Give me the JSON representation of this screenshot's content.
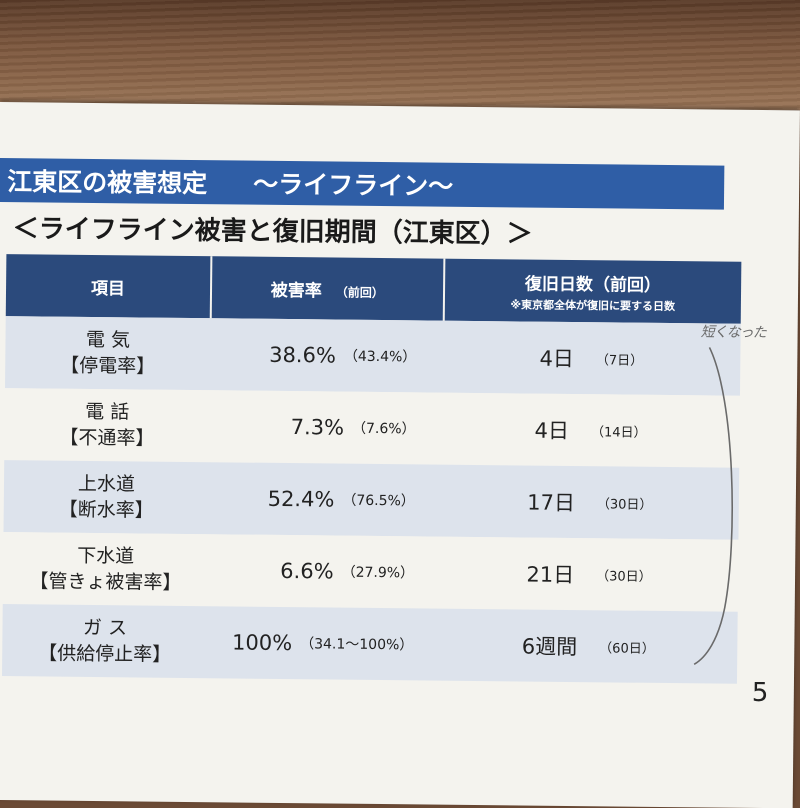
{
  "banner": {
    "title": "江東区の被害想定",
    "subtitle": "～ライフライン～"
  },
  "section_title": "＜ライフライン被害と復旧期間（江東区）＞",
  "table": {
    "headers": {
      "item": "項目",
      "rate": "被害率",
      "rate_prev": "（前回）",
      "days": "復旧日数（前回）",
      "days_note": "※東京都全体が復旧に要する日数"
    },
    "rows": [
      {
        "item": "電 気",
        "sub": "【停電率】",
        "rate": "38.6%",
        "rate_prev": "（43.4%）",
        "days": "4日",
        "days_prev": "（7日）"
      },
      {
        "item": "電 話",
        "sub": "【不通率】",
        "rate": "7.3%",
        "rate_prev": "（7.6%）",
        "days": "4日",
        "days_prev": "（14日）"
      },
      {
        "item": "上水道",
        "sub": "【断水率】",
        "rate": "52.4%",
        "rate_prev": "（76.5%）",
        "days": "17日",
        "days_prev": "（30日）"
      },
      {
        "item": "下水道",
        "sub": "【管きょ被害率】",
        "rate": "6.6%",
        "rate_prev": "（27.9%）",
        "days": "21日",
        "days_prev": "（30日）"
      },
      {
        "item": "ガ ス",
        "sub": "【供給停止率】",
        "rate": "100%",
        "rate_prev": "（34.1～100%）",
        "days": "6週間",
        "days_prev": "（60日）"
      }
    ]
  },
  "handwritten_note": "短くなった",
  "page_number": "5"
}
